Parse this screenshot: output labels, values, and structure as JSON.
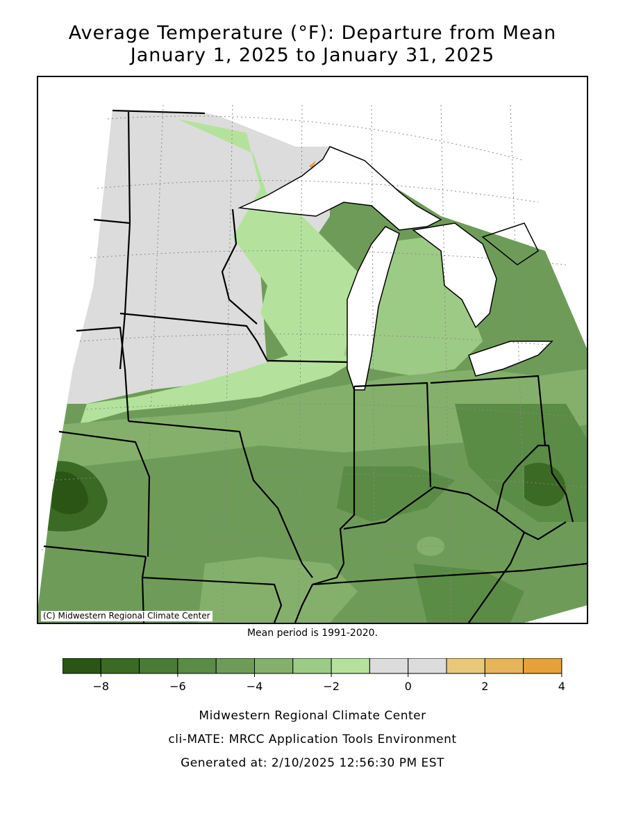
{
  "title": {
    "line1": "Average Temperature (°F): Departure from Mean",
    "line2": "January 1, 2025 to January 31, 2025"
  },
  "map": {
    "credit": "(C) Midwestern Regional Climate Center",
    "mean_period": "Mean period is 1991-2020.",
    "colors": {
      "water": "#ffffff",
      "gray_zero": "#dcdcdc",
      "lake_superior_warm": "#e8a03c"
    }
  },
  "legend": {
    "bins": [
      {
        "from": -9,
        "to": -8,
        "color": "#2a5514"
      },
      {
        "from": -8,
        "to": -7,
        "color": "#3a6a24"
      },
      {
        "from": -7,
        "to": -6,
        "color": "#4a7c35"
      },
      {
        "from": -6,
        "to": -5,
        "color": "#5b8c46"
      },
      {
        "from": -5,
        "to": -4,
        "color": "#6e9c58"
      },
      {
        "from": -4,
        "to": -3,
        "color": "#84b06c"
      },
      {
        "from": -3,
        "to": -2,
        "color": "#9ccb85"
      },
      {
        "from": -2,
        "to": -1,
        "color": "#b4e29c"
      },
      {
        "from": -1,
        "to": 0,
        "color": "#dcdcdc"
      },
      {
        "from": 0,
        "to": 1,
        "color": "#dcdcdc"
      },
      {
        "from": 1,
        "to": 2,
        "color": "#e8c87a"
      },
      {
        "from": 2,
        "to": 3,
        "color": "#e6b45a"
      },
      {
        "from": 3,
        "to": 4,
        "color": "#e6a13a"
      }
    ],
    "ticks": [
      "−8",
      "−6",
      "−4",
      "−2",
      "0",
      "2",
      "4"
    ]
  },
  "footer": {
    "line1": "Midwestern Regional Climate Center",
    "line2": "cli-MATE: MRCC Application Tools Environment",
    "line3": "Generated at: 2/10/2025 12:56:30 PM EST"
  }
}
